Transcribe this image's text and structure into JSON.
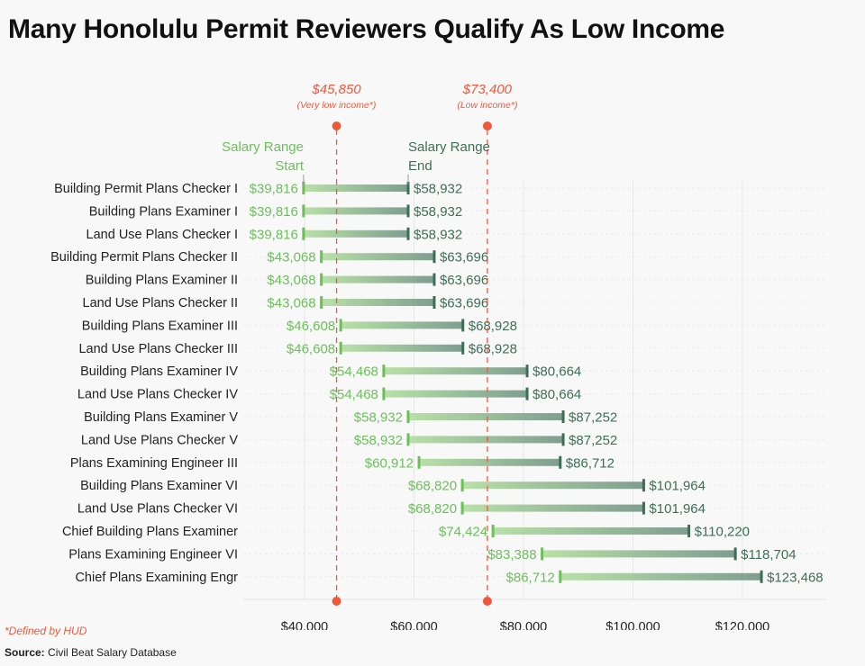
{
  "header": {
    "title": "Many Honolulu Permit Reviewers Qualify As Low Income"
  },
  "footer": {
    "footnote": "*Defined by HUD",
    "source_label": "Source:",
    "source_text": "Civil Beat Salary Database"
  },
  "colors": {
    "start": "#6dbf5c",
    "end": "#3f6e58",
    "bar_start": "#b9e0a8",
    "bar_end": "#7f9e90",
    "threshold": "#f0583a",
    "grid": "#e6e6e6",
    "label": "#222222"
  },
  "chart_data": {
    "type": "dumbbell",
    "title": "Many Honolulu Permit Reviewers Qualify As Low Income",
    "xlabel": "",
    "ylabel": "",
    "xlim": [
      32000,
      136000
    ],
    "x_ticks": [
      40000,
      60000,
      80000,
      100000,
      120000
    ],
    "x_tick_labels": [
      "$40,000",
      "$60,000",
      "$80,000",
      "$100,000",
      "$120,000"
    ],
    "grid": true,
    "legend": {
      "start": "Salary Range Start",
      "end": "Salary Range End"
    },
    "categories": [
      "Building Permit Plans Checker I",
      "Building Plans Examiner I",
      "Land Use Plans Checker I",
      "Building Permit Plans Checker II",
      "Building Plans Examiner II",
      "Land Use Plans Checker II",
      "Building Plans Examiner III",
      "Land Use Plans Checker III",
      "Building Plans Examiner IV",
      "Land Use Plans Checker IV",
      "Building Plans Examiner V",
      "Land Use Plans Checker V",
      "Plans Examining Engineer III",
      "Building Plans Examiner VI",
      "Land Use Plans Checker VI",
      "Chief Building Plans Examiner",
      "Plans Examining Engineer VI",
      "Chief Plans Examining Engr"
    ],
    "series": [
      {
        "name": "Salary Range Start",
        "values": [
          39816,
          39816,
          39816,
          43068,
          43068,
          43068,
          46608,
          46608,
          54468,
          54468,
          58932,
          58932,
          60912,
          68820,
          68820,
          74424,
          83388,
          86712
        ],
        "labels": [
          "$39,816",
          "$39,816",
          "$39,816",
          "$43,068",
          "$43,068",
          "$43,068",
          "$46,608",
          "$46,608",
          "$54,468",
          "$54,468",
          "$58,932",
          "$58,932",
          "$60,912",
          "$68,820",
          "$68,820",
          "$74,424",
          "$83,388",
          "$86,712"
        ]
      },
      {
        "name": "Salary Range End",
        "values": [
          58932,
          58932,
          58932,
          63696,
          63696,
          63696,
          68928,
          68928,
          80664,
          80664,
          87252,
          87252,
          86712,
          101964,
          101964,
          110220,
          118704,
          123468
        ],
        "labels": [
          "$58,932",
          "$58,932",
          "$58,932",
          "$63,696",
          "$63,696",
          "$63,696",
          "$68,928",
          "$68,928",
          "$80,664",
          "$80,664",
          "$87,252",
          "$87,252",
          "$86,712",
          "$101,964",
          "$101,964",
          "$110,220",
          "$118,704",
          "$123,468"
        ]
      }
    ],
    "thresholds": [
      {
        "value": 45850,
        "label": "$45,850",
        "sublabel": "(Very low income*)"
      },
      {
        "value": 73400,
        "label": "$73,400",
        "sublabel": "(Low income*)"
      }
    ]
  }
}
